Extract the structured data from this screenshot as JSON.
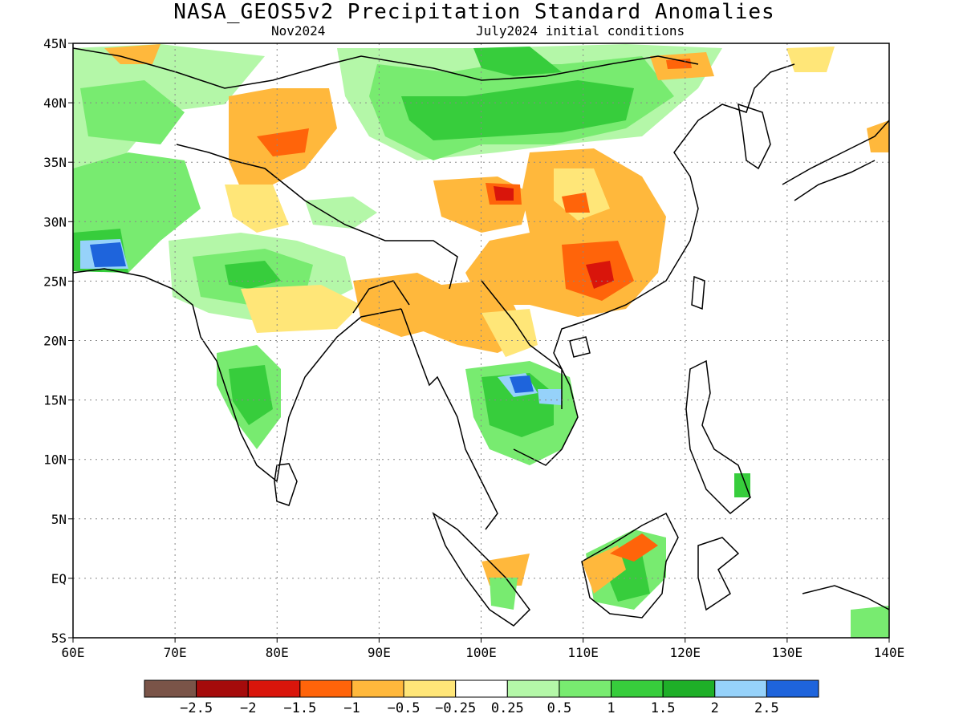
{
  "title": "NASA_GEOS5v2 Precipitation Standard Anomalies",
  "subtitle_left": "Nov2024",
  "subtitle_right": "July2024 initial conditions",
  "lon_ticks": [
    "60E",
    "70E",
    "80E",
    "90E",
    "100E",
    "110E",
    "120E",
    "130E",
    "140E"
  ],
  "lat_ticks": [
    "45N",
    "40N",
    "35N",
    "30N",
    "25N",
    "20N",
    "15N",
    "10N",
    "5N",
    "EQ",
    "5S"
  ],
  "lon_range": [
    60,
    140
  ],
  "lat_range": [
    -5,
    45
  ],
  "colorbar": {
    "colors": [
      "#7a5448",
      "#a50b0b",
      "#d9150b",
      "#ff640a",
      "#ffb83c",
      "#ffe678",
      "#ffffff",
      "#b4f7a8",
      "#78eb70",
      "#37cd3c",
      "#1eaf28",
      "#96d2fa",
      "#1e64dc"
    ],
    "labels": [
      "-2.5",
      "-2",
      "-1.5",
      "-1",
      "-0.5",
      "-0.25",
      "0.25",
      "0.5",
      "1",
      "1.5",
      "2",
      "2.5"
    ]
  }
}
